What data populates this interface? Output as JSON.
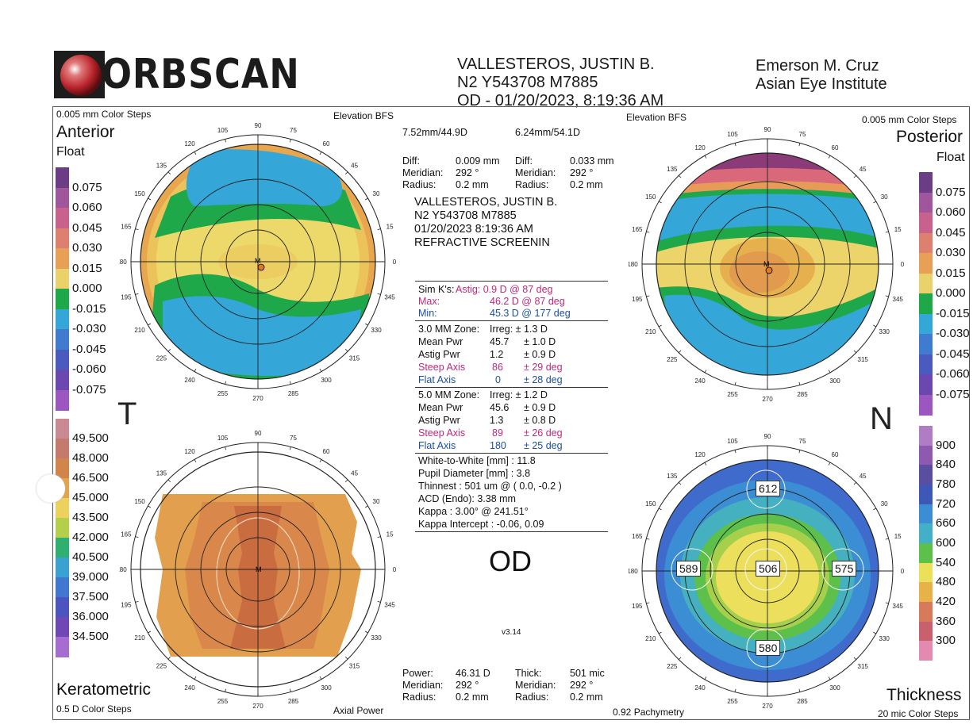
{
  "header": {
    "logo_text": "ORBSCAN",
    "patient_name": "VALLESTEROS, JUSTIN B.",
    "patient_id": "N2 Y543708 M7885",
    "exam": "OD - 01/20/2023, 8:19:36 AM",
    "doctor": "Emerson M. Cruz",
    "institute": "Asian Eye Institute"
  },
  "maps": {
    "anterior": {
      "title": "Anterior",
      "subtitle": "Float",
      "steps": "0.005 mm Color Steps",
      "type": "Elevation BFS"
    },
    "posterior": {
      "title": "Posterior",
      "subtitle": "Float",
      "steps": "0.005 mm Color Steps",
      "type": "Elevation BFS"
    },
    "keratometric": {
      "title": "Keratometric",
      "steps": "0.5 D Color Steps",
      "type": "Axial Power"
    },
    "thickness": {
      "title": "Thickness",
      "steps": "20 mic Color Steps",
      "type": "0.92 Pachymetry",
      "readings": {
        "superior": "612",
        "temporal": "589",
        "center": "506",
        "nasal": "575",
        "inferior": "580"
      }
    }
  },
  "side_labels": {
    "left": "T",
    "right": "N"
  },
  "axis_labels": [
    "90",
    "75",
    "60",
    "45",
    "30",
    "15",
    "0",
    "345",
    "330",
    "315",
    "300",
    "285",
    "270",
    "255",
    "240",
    "225",
    "210",
    "195",
    "180",
    "165",
    "150",
    "135",
    "120",
    "105"
  ],
  "scales": {
    "elevation_ticks": [
      "0.075",
      "0.060",
      "0.045",
      "0.030",
      "0.015",
      "0.000",
      "-0.015",
      "-0.030",
      "-0.045",
      "-0.060",
      "-0.075"
    ],
    "elevation_colors": [
      "#6a3d84",
      "#a0569a",
      "#c8628c",
      "#de8070",
      "#e8a057",
      "#ead26a",
      "#1fa84a",
      "#34a6d8",
      "#3f7cd0",
      "#4a5bc0",
      "#6b47b0",
      "#9c56c0"
    ],
    "power_ticks": [
      "49.500",
      "48.000",
      "46.500",
      "45.000",
      "43.500",
      "42.000",
      "40.500",
      "39.000",
      "37.500",
      "36.000",
      "34.500"
    ],
    "power_colors": [
      "#c98a94",
      "#c47a6c",
      "#d1854a",
      "#e4a34a",
      "#ecd15c",
      "#b4d04a",
      "#2fb070",
      "#3aa2d0",
      "#4078d0",
      "#4b54bf",
      "#6f48b4",
      "#a66cd0"
    ],
    "thickness_ticks": [
      "900",
      "840",
      "780",
      "720",
      "660",
      "600",
      "540",
      "480",
      "420",
      "360",
      "300"
    ],
    "thickness_colors": [
      "#b07cc4",
      "#8e5ab0",
      "#5a4ea0",
      "#3d58b6",
      "#3b8dd4",
      "#43b0c8",
      "#5cc04a",
      "#eae05a",
      "#e8b24a",
      "#d77a5a",
      "#c8606e",
      "#e48ab0"
    ]
  },
  "center_panel": {
    "ant_bfs": "7.52mm/44.9D",
    "post_bfs": "6.24mm/54.1D",
    "diff_left": {
      "diff_label": "Diff:",
      "diff": "0.009 mm",
      "meridian_label": "Meridian:",
      "meridian": "292 °",
      "radius_label": "Radius:",
      "radius": "0.2 mm"
    },
    "diff_right": {
      "diff_label": "Diff:",
      "diff": "0.033 mm",
      "meridian_label": "Meridian:",
      "meridian": "292 °",
      "radius_label": "Radius:",
      "radius": "0.2 mm"
    },
    "patient_block": [
      "VALLESTEROS, JUSTIN B.",
      "N2 Y543708 M7885",
      "01/20/2023 8:19:36 AM",
      "REFRACTIVE  SCREENIN"
    ],
    "simk": {
      "label": "Sim K's:",
      "astig": "Astig:  0.9 D   @ 87 deg",
      "max": "Max:",
      "max_val": "46.2 D  @ 87 deg",
      "min": "Min:",
      "min_val": "45.3 D  @ 177 deg"
    },
    "zone3": {
      "title": "3.0 MM Zone:",
      "irreg": "Irreg:   ± 1.3 D",
      "mean_label": "Mean Pwr",
      "mean": "45.7",
      "mean_pm": "± 1.0 D",
      "astig_label": "Astig Pwr",
      "astig": "1.2",
      "astig_pm": "± 0.9 D",
      "steep_label": "Steep Axis",
      "steep": "86",
      "steep_pm": "± 29 deg",
      "flat_label": "Flat Axis",
      "flat": "0",
      "flat_pm": "± 28 deg"
    },
    "zone5": {
      "title": "5.0 MM Zone:",
      "irreg": "Irreg:   ± 1.2 D",
      "mean_label": "Mean Pwr",
      "mean": "45.6",
      "mean_pm": "± 0.9 D",
      "astig_label": "Astig Pwr",
      "astig": "1.3",
      "astig_pm": "± 0.8 D",
      "steep_label": "Steep Axis",
      "steep": "89",
      "steep_pm": "± 26 deg",
      "flat_label": "Flat Axis",
      "flat": "180",
      "flat_pm": "± 25 deg"
    },
    "extra": [
      "White-to-White [mm] : 11.8",
      "Pupil Diameter [mm] :  3.8",
      "Thinnest : 501 um @ ( 0.0, -0.2 )",
      "ACD (Endo): 3.38 mm",
      "Kappa : 3.00° @ 241.51°",
      "Kappa Intercept : -0.06, 0.09"
    ],
    "eye": "OD",
    "version": "v3.14",
    "power_block": {
      "power_label": "Power:",
      "power": "46.31 D",
      "meridian_label": "Meridian:",
      "meridian": "292 °",
      "radius_label": "Radius:",
      "radius": "0.2 mm"
    },
    "thick_block": {
      "thick_label": "Thick:",
      "thick": "501 mic",
      "meridian_label": "Meridian:",
      "meridian": "292 °",
      "radius_label": "Radius:",
      "radius": "0.2 mm"
    }
  }
}
